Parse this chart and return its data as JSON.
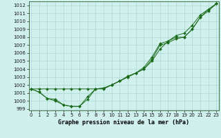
{
  "title": "Graphe pression niveau de la mer (hPa)",
  "bg_color": "#cff0ec",
  "line_color": "#1a6b1a",
  "grid_color": "#aad8d0",
  "x_ticks": [
    0,
    1,
    2,
    3,
    4,
    5,
    6,
    7,
    8,
    9,
    10,
    11,
    12,
    13,
    14,
    15,
    16,
    17,
    18,
    19,
    20,
    21,
    22,
    23
  ],
  "ylim": [
    998.8,
    1012.5
  ],
  "xlim": [
    -0.3,
    23.3
  ],
  "yticks": [
    999,
    1000,
    1001,
    1002,
    1003,
    1004,
    1005,
    1006,
    1007,
    1008,
    1009,
    1010,
    1011,
    1012
  ],
  "series": [
    [
      1001.5,
      1001.5,
      1001.5,
      1001.5,
      1001.5,
      1001.5,
      1001.5,
      1001.5,
      1001.5,
      1001.5,
      1002.0,
      1002.5,
      1003.0,
      1003.5,
      1004.0,
      1005.0,
      1006.5,
      1007.5,
      1008.0,
      1008.0,
      1009.0,
      1010.5,
      1011.5,
      1012.2
    ],
    [
      1001.5,
      1001.1,
      1000.3,
      1000.2,
      999.5,
      999.3,
      999.3,
      1000.5,
      1001.5,
      1001.6,
      1002.0,
      1002.5,
      1003.0,
      1003.5,
      1004.0,
      1005.2,
      1007.0,
      1007.3,
      1007.8,
      1008.0,
      1009.0,
      1010.5,
      1011.3,
      1012.2
    ],
    [
      1001.5,
      1001.1,
      1000.3,
      1000.0,
      999.5,
      999.3,
      999.3,
      1000.2,
      1001.5,
      1001.6,
      1002.0,
      1002.5,
      1003.1,
      1003.5,
      1004.2,
      1005.5,
      1007.2,
      1007.5,
      1008.2,
      1008.5,
      1009.5,
      1010.8,
      1011.5,
      1012.2
    ]
  ]
}
